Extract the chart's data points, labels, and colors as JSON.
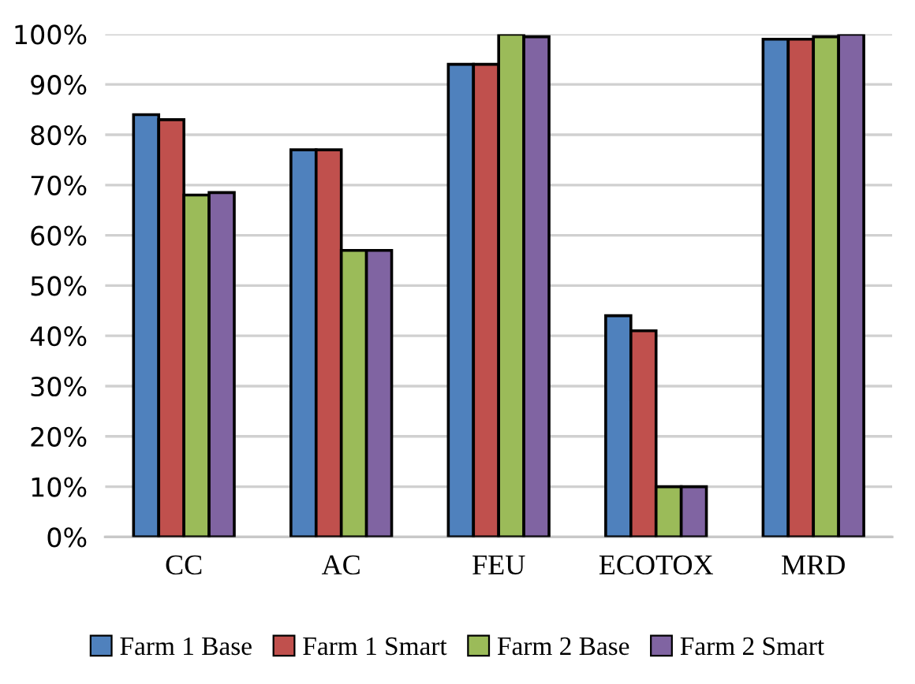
{
  "chart_data": {
    "type": "bar",
    "categories": [
      "CC",
      "AC",
      "FEU",
      "ECOTOX",
      "MRD"
    ],
    "series": [
      {
        "name": "Farm 1 Base",
        "color": "#4f81bd",
        "values": [
          84,
          77,
          94,
          44,
          99
        ]
      },
      {
        "name": "Farm 1 Smart",
        "color": "#c0504d",
        "values": [
          83,
          77,
          94,
          41,
          99
        ]
      },
      {
        "name": "Farm 2 Base",
        "color": "#9bbb59",
        "values": [
          68,
          57,
          100,
          10,
          99.5
        ]
      },
      {
        "name": "Farm 2 Smart",
        "color": "#8064a2",
        "values": [
          68.5,
          57,
          99.5,
          10,
          100
        ]
      }
    ],
    "ylim": [
      0,
      100
    ],
    "yticks": [
      {
        "value": 0,
        "label": "0%"
      },
      {
        "value": 10,
        "label": "10%"
      },
      {
        "value": 20,
        "label": "20%"
      },
      {
        "value": 30,
        "label": "30%"
      },
      {
        "value": 40,
        "label": "40%"
      },
      {
        "value": 50,
        "label": "50%"
      },
      {
        "value": 60,
        "label": "60%"
      },
      {
        "value": 70,
        "label": "70%"
      },
      {
        "value": 80,
        "label": "80%"
      },
      {
        "value": 90,
        "label": "90%"
      },
      {
        "value": 100,
        "label": "100%"
      }
    ],
    "grid": "y",
    "legend": "bottom"
  }
}
